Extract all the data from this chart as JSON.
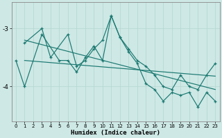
{
  "xlabel": "Humidex (Indice chaleur)",
  "ylabel": "",
  "bg_color": "#cde8e5",
  "line_color": "#1a7870",
  "grid_color": "#b8d8d4",
  "xlim": [
    -0.5,
    23.5
  ],
  "ylim": [
    -4.6,
    -2.55
  ],
  "yticks": [
    -4,
    -3
  ],
  "xticks": [
    0,
    1,
    2,
    3,
    4,
    5,
    6,
    7,
    8,
    9,
    10,
    11,
    12,
    13,
    14,
    15,
    16,
    17,
    18,
    19,
    20,
    21,
    22,
    23
  ],
  "series1_x": [
    0,
    1,
    3,
    5,
    6,
    7,
    8,
    9,
    10,
    11,
    12,
    13,
    14,
    15,
    16,
    17,
    18,
    19,
    20,
    21,
    22,
    23
  ],
  "series1_y": [
    -3.55,
    -4.0,
    -3.1,
    -3.55,
    -3.55,
    -3.75,
    -3.5,
    -3.3,
    -3.55,
    -2.78,
    -3.15,
    -3.4,
    -3.6,
    -3.95,
    -4.05,
    -4.25,
    -4.1,
    -4.15,
    -4.1,
    -4.35,
    -4.1,
    -4.25
  ],
  "series2_x": [
    1,
    3,
    4,
    6,
    7,
    8,
    9,
    10,
    11,
    12,
    13,
    14,
    15,
    16,
    17,
    18,
    19,
    20,
    21,
    22,
    23
  ],
  "series2_y": [
    -3.25,
    -3.0,
    -3.5,
    -3.1,
    -3.65,
    -3.55,
    -3.35,
    -3.2,
    -2.78,
    -3.15,
    -3.35,
    -3.55,
    -3.65,
    -3.8,
    -4.0,
    -4.05,
    -3.8,
    -4.0,
    -4.05,
    -3.8,
    -3.6
  ],
  "trend1_x": [
    1,
    23
  ],
  "trend1_y": [
    -3.2,
    -4.05
  ],
  "trend2_x": [
    1,
    23
  ],
  "trend2_y": [
    -3.55,
    -3.82
  ]
}
